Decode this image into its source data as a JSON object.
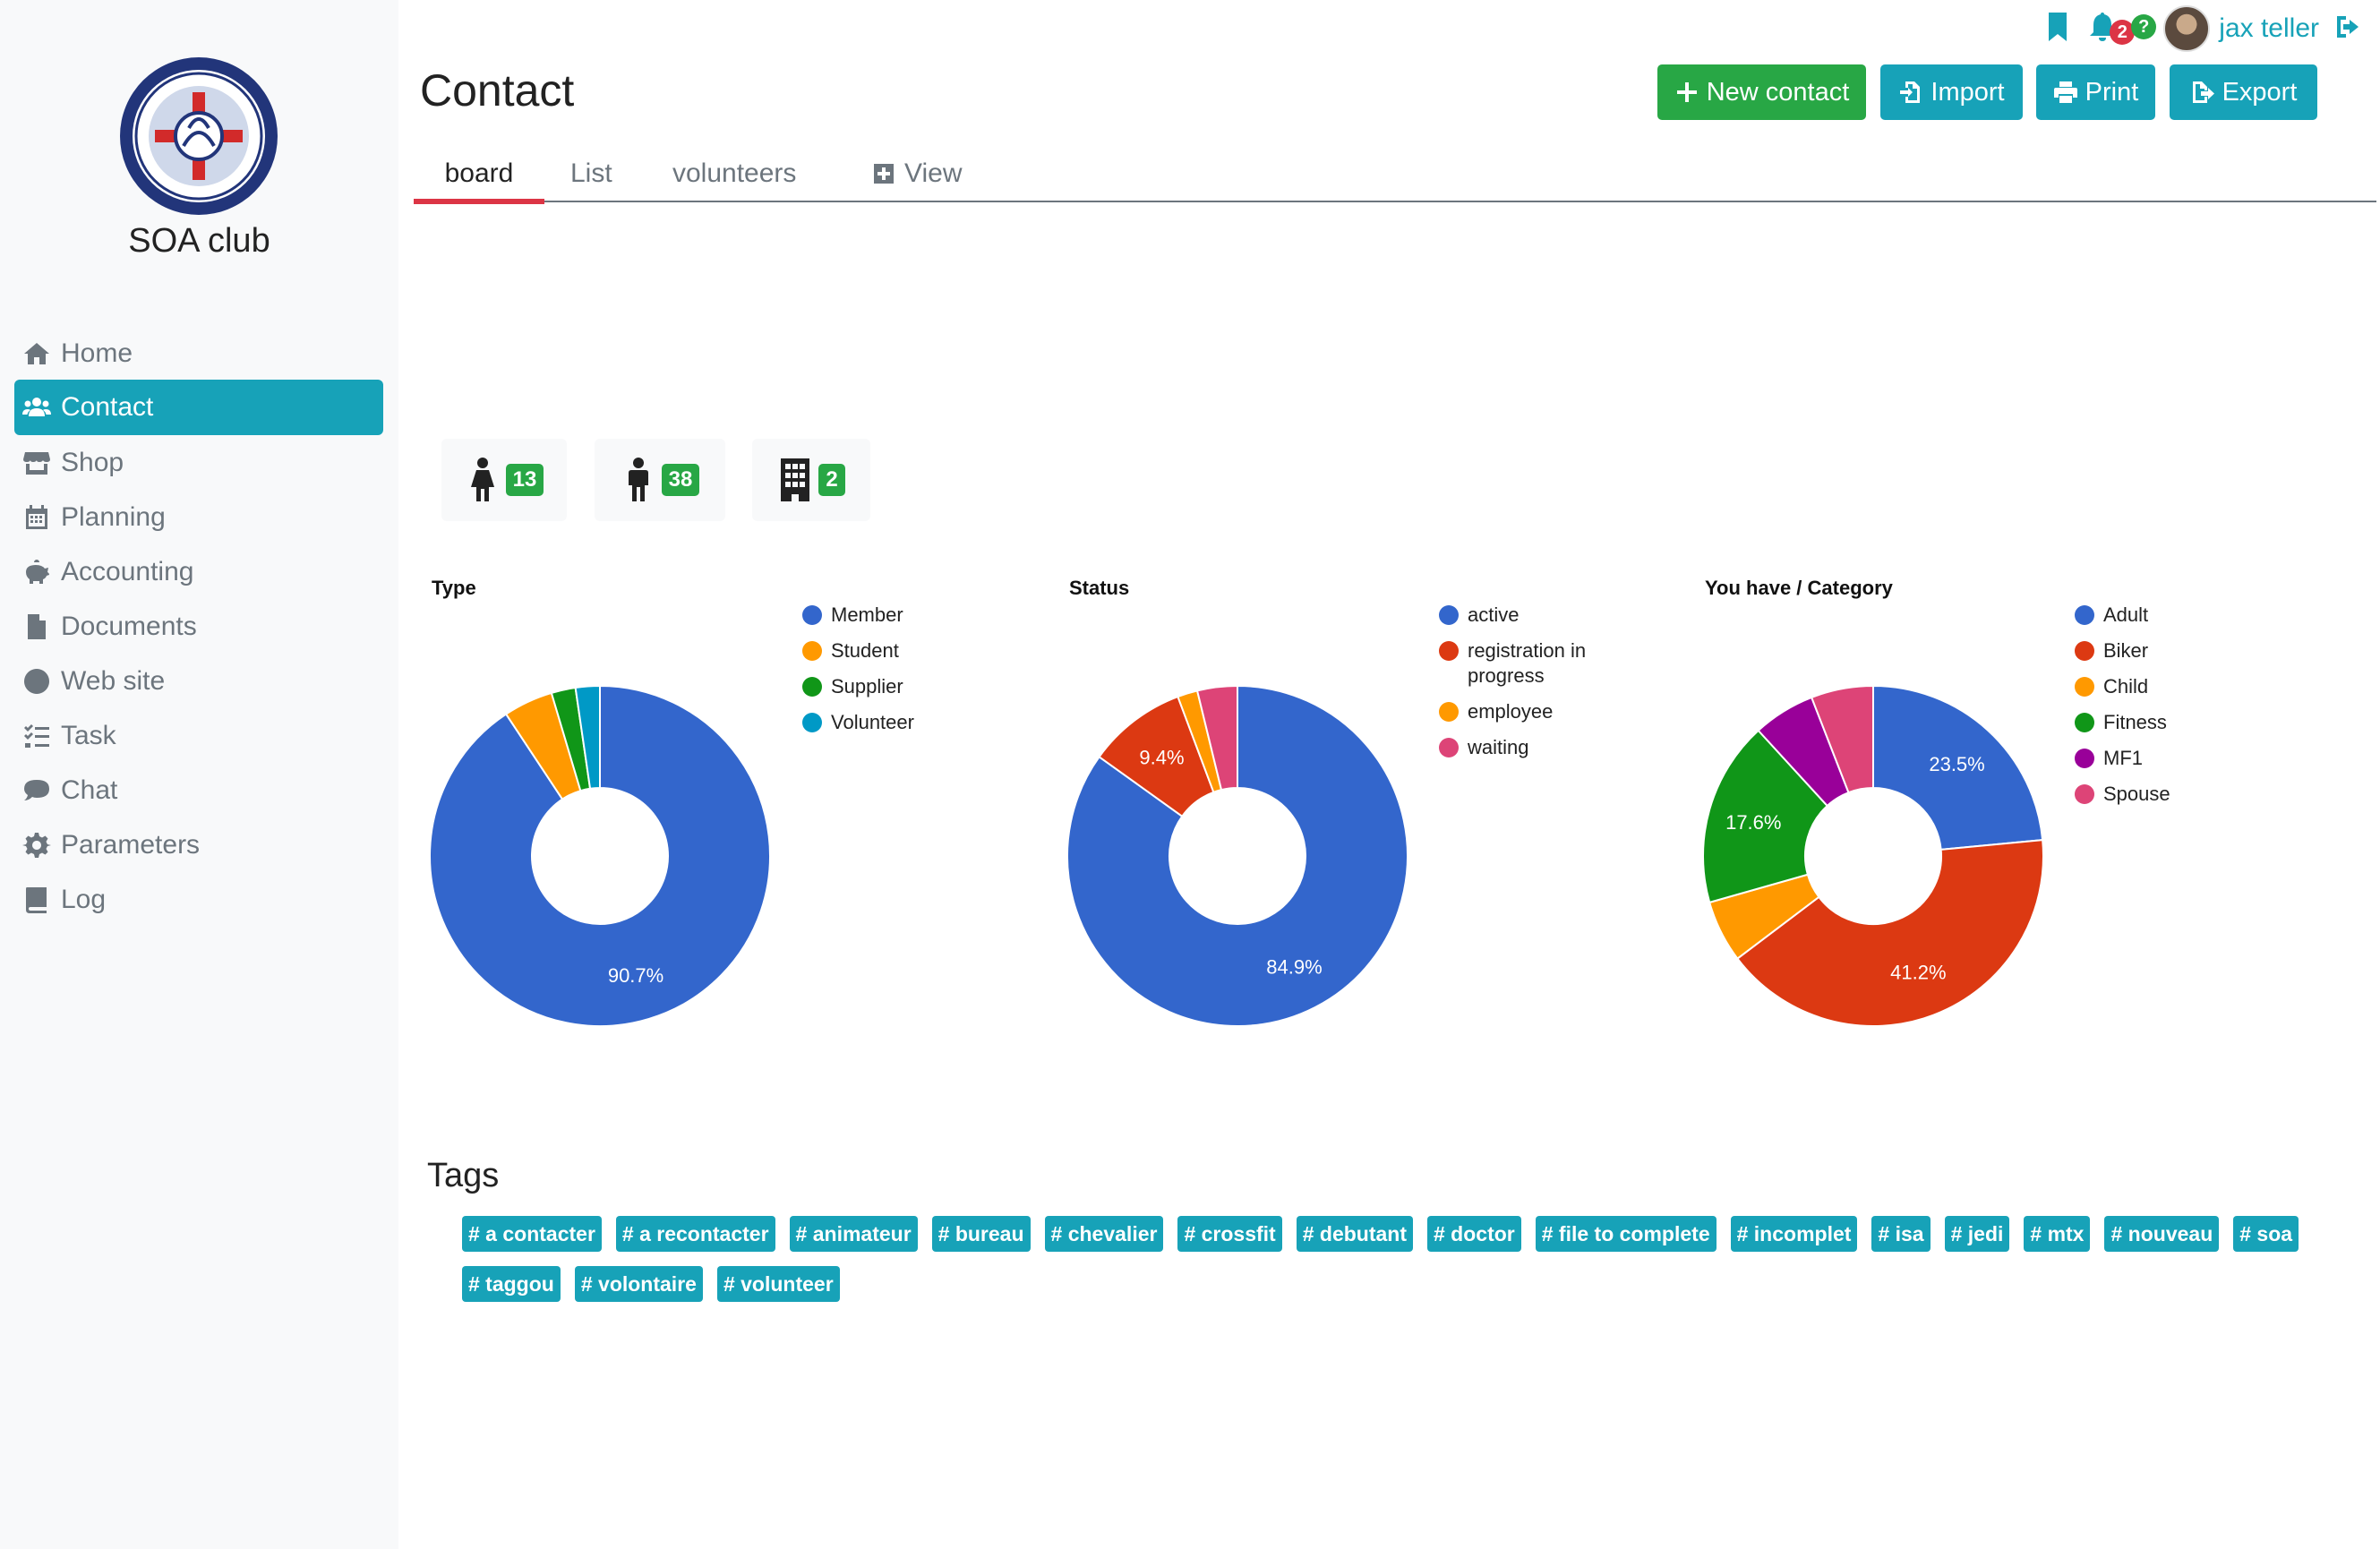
{
  "app": {
    "club_name": "SOA club"
  },
  "sidebar": {
    "items": [
      {
        "label": "Home",
        "icon": "home-icon",
        "active": false
      },
      {
        "label": "Contact",
        "icon": "users-icon",
        "active": true
      },
      {
        "label": "Shop",
        "icon": "store-icon",
        "active": false
      },
      {
        "label": "Planning",
        "icon": "calendar-icon",
        "active": false
      },
      {
        "label": "Accounting",
        "icon": "piggy-bank-icon",
        "active": false
      },
      {
        "label": "Documents",
        "icon": "file-icon",
        "active": false
      },
      {
        "label": "Web site",
        "icon": "globe-icon",
        "active": false
      },
      {
        "label": "Task",
        "icon": "tasks-icon",
        "active": false
      },
      {
        "label": "Chat",
        "icon": "comment-icon",
        "active": false
      },
      {
        "label": "Parameters",
        "icon": "cog-icon",
        "active": false
      },
      {
        "label": "Log",
        "icon": "book-icon",
        "active": false
      }
    ]
  },
  "header": {
    "title": "Contact",
    "buttons": {
      "new_contact": "New contact",
      "import": "Import",
      "print": "Print",
      "export": "Export"
    }
  },
  "topbar": {
    "notification_count": "2",
    "help_badge": "?",
    "username": "jax teller"
  },
  "tabs": {
    "board": "board",
    "list": "List",
    "volunteers": "volunteers",
    "view": "View"
  },
  "counts": {
    "female": "13",
    "male": "38",
    "company": "2"
  },
  "colors": {
    "accent": "#17a2b8",
    "success": "#28a745",
    "danger": "#dc3545"
  },
  "chart_data": [
    {
      "type": "pie",
      "title": "Type",
      "categories": [
        "Member",
        "Student",
        "Supplier",
        "Volunteer"
      ],
      "values": [
        90.7,
        4.7,
        2.3,
        2.3
      ],
      "colors": [
        "#3366cc",
        "#ff9900",
        "#109618",
        "#0099c6"
      ],
      "labels_shown": [
        "90.7%",
        "",
        "",
        ""
      ],
      "legend": "right"
    },
    {
      "type": "pie",
      "title": "Status",
      "categories": [
        "active",
        "registration in progress",
        "employee",
        "waiting"
      ],
      "values": [
        84.9,
        9.4,
        1.9,
        3.8
      ],
      "colors": [
        "#3366cc",
        "#dc3912",
        "#ff9900",
        "#dd4477"
      ],
      "labels_shown": [
        "84.9%",
        "9.4%",
        "",
        ""
      ],
      "legend": "right"
    },
    {
      "type": "pie",
      "title": "You have / Category",
      "categories": [
        "Adult",
        "Biker",
        "Child",
        "Fitness",
        "MF1",
        "Spouse"
      ],
      "values": [
        23.5,
        41.2,
        5.9,
        17.6,
        5.9,
        5.9
      ],
      "colors": [
        "#3366cc",
        "#dc3912",
        "#ff9900",
        "#109618",
        "#990099",
        "#dd4477"
      ],
      "labels_shown": [
        "23.5%",
        "41.2%",
        "",
        "17.6%",
        "",
        ""
      ],
      "legend": "right"
    }
  ],
  "tags": {
    "title": "Tags",
    "items": [
      "# a contacter",
      "# a recontacter",
      "# animateur",
      "# bureau",
      "# chevalier",
      "# crossfit",
      "# debutant",
      "# doctor",
      "# file to complete",
      "# incomplet",
      "# isa",
      "# jedi",
      "# mtx",
      "# nouveau",
      "# soa",
      "# taggou",
      "# volontaire",
      "# volunteer"
    ]
  }
}
